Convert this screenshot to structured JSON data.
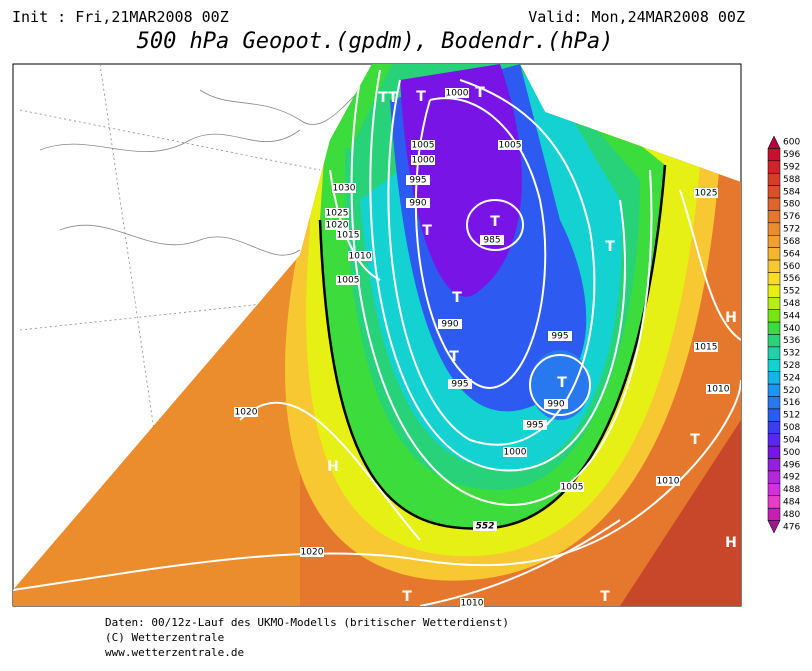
{
  "header": {
    "init": "Init : Fri,21MAR2008 00Z",
    "valid": "Valid: Mon,24MAR2008 00Z",
    "title": "500 hPa Geopot.(gpdm), Bodendr.(hPa)"
  },
  "map": {
    "isobar_labels": [
      1000,
      1005,
      1000,
      995,
      990,
      1030,
      1025,
      1020,
      1015,
      1010,
      1005,
      1005,
      985,
      990,
      995,
      995,
      990,
      995,
      1000,
      1005,
      1025,
      1015,
      1010,
      1010,
      1020,
      1020,
      1010,
      552
    ],
    "markers": [
      "T",
      "T",
      "T",
      "T",
      "T",
      "T",
      "T",
      "T",
      "T",
      "T",
      "T",
      "T",
      "T",
      "H",
      "H",
      "H"
    ]
  },
  "legend": {
    "labels": [
      600,
      596,
      592,
      588,
      584,
      580,
      576,
      572,
      568,
      564,
      560,
      556,
      552,
      548,
      544,
      540,
      536,
      532,
      528,
      524,
      520,
      516,
      512,
      508,
      504,
      500,
      496,
      492,
      488,
      484,
      480,
      476
    ],
    "colors": [
      "#b4003c",
      "#c8102e",
      "#d2232a",
      "#d73c28",
      "#dc5028",
      "#e1642a",
      "#e6782d",
      "#eb8c2d",
      "#f0a030",
      "#f5b432",
      "#f8c832",
      "#fadc28",
      "#e6f014",
      "#b4f014",
      "#78e614",
      "#3cdc3c",
      "#28d278",
      "#1ed2aa",
      "#14d2d2",
      "#14b4e6",
      "#1e96f0",
      "#2878f0",
      "#2d5af0",
      "#3c3cf0",
      "#5a28eb",
      "#7814e6",
      "#961edc",
      "#b428dc",
      "#d232dc",
      "#e63cc8",
      "#c81eb4",
      "#a0148c"
    ]
  },
  "footer": {
    "line1": "Daten: 00/12z-Lauf des UKMO-Modells (britischer Wetterdienst)",
    "line2": "(C) Wetterzentrale",
    "line3": "www.wetterzentrale.de"
  }
}
